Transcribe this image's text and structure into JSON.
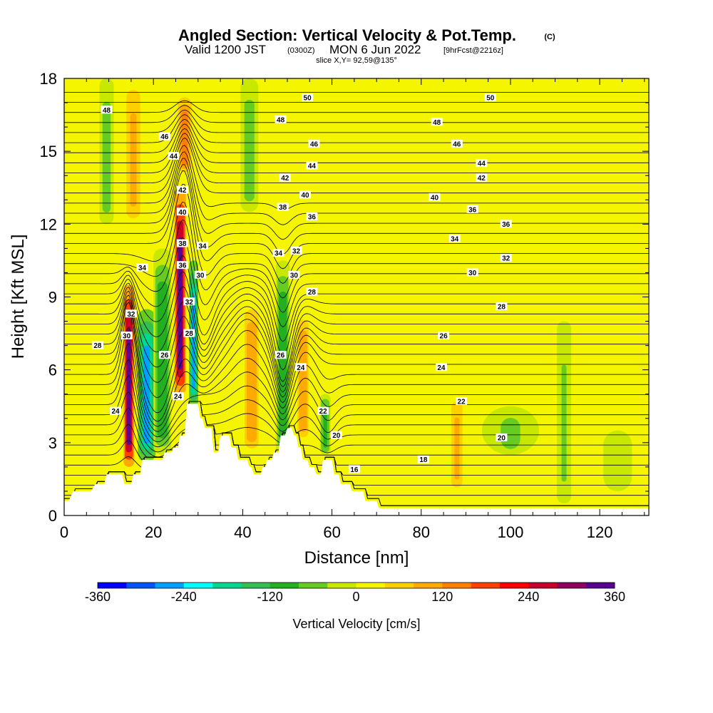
{
  "header": {
    "title": "Angled Section: Vertical Velocity & Pot.Temp.",
    "title_suffix": "(C)",
    "valid_prefix": "Valid 1200 JST",
    "valid_utc": "(0300Z)",
    "valid_date": "MON 6 Jun 2022",
    "valid_fcst": "[9hrFcst@2216z]",
    "slice": "slice X,Y= 92,59@135°"
  },
  "colorbar": {
    "label": "Vertical Velocity [cm/s]",
    "ticks": [
      "-360",
      "-240",
      "-120",
      "0",
      "120",
      "240",
      "360"
    ],
    "colors": [
      "#0000ff",
      "#0055ff",
      "#00a0ff",
      "#00ffff",
      "#00d890",
      "#33c050",
      "#22b020",
      "#66cc22",
      "#c8e800",
      "#f5f500",
      "#ffd000",
      "#ffaa00",
      "#ff8000",
      "#ff4000",
      "#ff0000",
      "#c8002a",
      "#900060",
      "#5a0090"
    ]
  },
  "chart_data": {
    "type": "heatmap",
    "xlabel": "Distance [nm]",
    "ylabel": "Height [Kft MSL]",
    "xlim": [
      0,
      131
    ],
    "ylim": [
      0,
      18
    ],
    "xticks": [
      "0",
      "20",
      "40",
      "60",
      "80",
      "100",
      "120"
    ],
    "yticks": [
      "0",
      "3",
      "6",
      "9",
      "12",
      "15",
      "18"
    ],
    "field": "Vertical Velocity [cm/s]",
    "field_range": [
      -360,
      360
    ],
    "contour_field": "Potential Temperature [C]",
    "velocity_features": [
      {
        "x": 14.5,
        "y_bottom": 2.0,
        "y_top": 9.5,
        "value": 320,
        "width": 1.5
      },
      {
        "x": 18.5,
        "y_bottom": 2.2,
        "y_top": 8.5,
        "value": -260,
        "width": 2.5
      },
      {
        "x": 22.0,
        "y_bottom": 2.5,
        "y_top": 11.0,
        "value": -110,
        "width": 2.5
      },
      {
        "x": 26.0,
        "y_bottom": 5.0,
        "y_top": 13.5,
        "value": 320,
        "width": 1.6
      },
      {
        "x": 27.0,
        "y_bottom": 14.0,
        "y_top": 17.5,
        "value": 120,
        "width": 2.5
      },
      {
        "x": 29.0,
        "y_bottom": 4.5,
        "y_top": 10.5,
        "value": -260,
        "width": 1.3
      },
      {
        "x": 15.5,
        "y_bottom": 12.0,
        "y_top": 18.0,
        "value": 90,
        "width": 2.5
      },
      {
        "x": 9.5,
        "y_bottom": 12.0,
        "y_top": 18.0,
        "value": -70,
        "width": 2.0
      },
      {
        "x": 42.0,
        "y_bottom": 2.5,
        "y_top": 9.0,
        "value": 110,
        "width": 2.5
      },
      {
        "x": 49.0,
        "y_bottom": 2.5,
        "y_top": 10.5,
        "value": -110,
        "width": 2.0
      },
      {
        "x": 53.5,
        "y_bottom": 3.0,
        "y_top": 8.5,
        "value": 110,
        "width": 2.0
      },
      {
        "x": 58.5,
        "y_bottom": 2.5,
        "y_top": 5.0,
        "value": -90,
        "width": 1.5
      },
      {
        "x": 41.5,
        "y_bottom": 12.5,
        "y_top": 18.0,
        "value": -70,
        "width": 2.5
      },
      {
        "x": 88.0,
        "y_bottom": 1.0,
        "y_top": 5.0,
        "value": 80,
        "width": 2.0
      },
      {
        "x": 100.0,
        "y_bottom": 2.5,
        "y_top": 4.5,
        "value": -50,
        "width": 8.0
      },
      {
        "x": 112.0,
        "y_bottom": 0.5,
        "y_top": 8.0,
        "value": -40,
        "width": 2.0
      },
      {
        "x": 124.0,
        "y_bottom": 1.0,
        "y_top": 3.5,
        "value": -30,
        "width": 4.0
      }
    ],
    "terrain": [
      [
        0,
        0.6
      ],
      [
        1,
        0.6
      ],
      [
        2,
        1.0
      ],
      [
        6,
        1.0
      ],
      [
        7,
        1.3
      ],
      [
        9,
        1.3
      ],
      [
        9.5,
        1.7
      ],
      [
        13,
        1.7
      ],
      [
        13.5,
        1.3
      ],
      [
        15,
        1.3
      ],
      [
        15.5,
        1.7
      ],
      [
        17,
        1.7
      ],
      [
        17.5,
        2.3
      ],
      [
        22,
        2.3
      ],
      [
        22.5,
        2.6
      ],
      [
        24,
        2.6
      ],
      [
        24.5,
        2.8
      ],
      [
        25.5,
        2.8
      ],
      [
        26,
        3.3
      ],
      [
        27,
        3.3
      ],
      [
        27.5,
        4.6
      ],
      [
        30,
        4.6
      ],
      [
        30.5,
        4.0
      ],
      [
        31,
        4.0
      ],
      [
        31.5,
        3.6
      ],
      [
        33,
        3.6
      ],
      [
        33.5,
        2.6
      ],
      [
        34.5,
        2.6
      ],
      [
        35,
        3.3
      ],
      [
        37,
        3.3
      ],
      [
        37.5,
        2.8
      ],
      [
        38.5,
        2.8
      ],
      [
        39,
        2.3
      ],
      [
        41,
        2.3
      ],
      [
        41.5,
        2.0
      ],
      [
        42,
        2.0
      ],
      [
        42.5,
        1.7
      ],
      [
        44,
        1.7
      ],
      [
        44.5,
        2.0
      ],
      [
        45,
        2.0
      ],
      [
        45.5,
        2.3
      ],
      [
        46.5,
        2.3
      ],
      [
        47,
        2.6
      ],
      [
        48,
        2.6
      ],
      [
        48.5,
        3.3
      ],
      [
        49.5,
        3.3
      ],
      [
        50,
        3.6
      ],
      [
        51,
        3.6
      ],
      [
        51.5,
        3.3
      ],
      [
        52,
        3.3
      ],
      [
        52.5,
        2.8
      ],
      [
        53,
        2.8
      ],
      [
        53.5,
        2.3
      ],
      [
        54.5,
        2.3
      ],
      [
        55,
        2.0
      ],
      [
        56,
        2.0
      ],
      [
        56.5,
        1.7
      ],
      [
        57.5,
        1.7
      ],
      [
        58,
        2.3
      ],
      [
        60,
        2.3
      ],
      [
        60.5,
        1.7
      ],
      [
        61.5,
        1.7
      ],
      [
        62,
        1.3
      ],
      [
        64,
        1.3
      ],
      [
        64.5,
        1.0
      ],
      [
        67,
        1.0
      ],
      [
        67.5,
        0.6
      ],
      [
        70,
        0.6
      ],
      [
        70.5,
        0.3
      ],
      [
        131,
        0.3
      ]
    ],
    "theta_bases": [
      10,
      11,
      12,
      13,
      14,
      15,
      16,
      17,
      18,
      19,
      20,
      21,
      22,
      23,
      24,
      25,
      26,
      27,
      28,
      29,
      30,
      31,
      32,
      33,
      34,
      35,
      36,
      37,
      38,
      39,
      40,
      41,
      42,
      43,
      44,
      45,
      46,
      47,
      48,
      49,
      50,
      51,
      52
    ],
    "theta_waves": [
      {
        "x": 14.5,
        "dx": 2.0,
        "dy": 3.0,
        "y_lo": 2.0,
        "y_hi": 10.0
      },
      {
        "x": 21.0,
        "dx": 4.5,
        "dy": -2.5,
        "y_lo": 2.0,
        "y_hi": 11.0
      },
      {
        "x": 27.0,
        "dx": 3.0,
        "dy": 3.5,
        "y_lo": 5.0,
        "y_hi": 17.0
      },
      {
        "x": 30.5,
        "dx": 3.5,
        "dy": -2.2,
        "y_lo": 5.0,
        "y_hi": 13.0
      },
      {
        "x": 41.0,
        "dx": 4.5,
        "dy": 1.5,
        "y_lo": 3.0,
        "y_hi": 10.0
      },
      {
        "x": 49.0,
        "dx": 2.5,
        "dy": -2.5,
        "y_lo": 3.0,
        "y_hi": 13.0
      },
      {
        "x": 54.0,
        "dx": 3.0,
        "dy": 1.0,
        "y_lo": 3.0,
        "y_hi": 9.0
      },
      {
        "x": 59.0,
        "dx": 2.5,
        "dy": -0.8,
        "y_lo": 2.5,
        "y_hi": 6.0
      }
    ],
    "contour_labels": [
      {
        "text": "48",
        "x": 9.5,
        "y": 16.7
      },
      {
        "text": "46",
        "x": 22.5,
        "y": 15.6
      },
      {
        "text": "44",
        "x": 24.5,
        "y": 14.8
      },
      {
        "text": "42",
        "x": 26.5,
        "y": 13.4
      },
      {
        "text": "40",
        "x": 26.5,
        "y": 12.5
      },
      {
        "text": "38",
        "x": 26.5,
        "y": 11.2
      },
      {
        "text": "36",
        "x": 26.5,
        "y": 10.3
      },
      {
        "text": "34",
        "x": 31.0,
        "y": 11.1
      },
      {
        "text": "30",
        "x": 30.5,
        "y": 9.9
      },
      {
        "text": "32",
        "x": 28.0,
        "y": 8.8
      },
      {
        "text": "28",
        "x": 28.0,
        "y": 7.5
      },
      {
        "text": "34",
        "x": 17.5,
        "y": 10.2
      },
      {
        "text": "32",
        "x": 15.0,
        "y": 8.3
      },
      {
        "text": "30",
        "x": 14.0,
        "y": 7.4
      },
      {
        "text": "28",
        "x": 7.5,
        "y": 7.0
      },
      {
        "text": "26",
        "x": 22.5,
        "y": 6.6
      },
      {
        "text": "24",
        "x": 25.5,
        "y": 4.9
      },
      {
        "text": "24",
        "x": 11.5,
        "y": 4.3
      },
      {
        "text": "50",
        "x": 54.5,
        "y": 17.2
      },
      {
        "text": "48",
        "x": 48.5,
        "y": 16.3
      },
      {
        "text": "46",
        "x": 56.0,
        "y": 15.3
      },
      {
        "text": "44",
        "x": 55.5,
        "y": 14.4
      },
      {
        "text": "42",
        "x": 49.5,
        "y": 13.9
      },
      {
        "text": "40",
        "x": 54.0,
        "y": 13.2
      },
      {
        "text": "38",
        "x": 49.0,
        "y": 12.7
      },
      {
        "text": "36",
        "x": 55.5,
        "y": 12.3
      },
      {
        "text": "34",
        "x": 48.0,
        "y": 10.8
      },
      {
        "text": "32",
        "x": 52.0,
        "y": 10.9
      },
      {
        "text": "30",
        "x": 51.5,
        "y": 9.9
      },
      {
        "text": "28",
        "x": 55.5,
        "y": 9.2
      },
      {
        "text": "26",
        "x": 48.5,
        "y": 6.6
      },
      {
        "text": "24",
        "x": 53.0,
        "y": 6.1
      },
      {
        "text": "22",
        "x": 58.0,
        "y": 4.3
      },
      {
        "text": "20",
        "x": 61.0,
        "y": 3.3
      },
      {
        "text": "16",
        "x": 65.0,
        "y": 1.9
      },
      {
        "text": "50",
        "x": 95.5,
        "y": 17.2
      },
      {
        "text": "48",
        "x": 83.5,
        "y": 16.2
      },
      {
        "text": "46",
        "x": 88.0,
        "y": 15.3
      },
      {
        "text": "44",
        "x": 93.5,
        "y": 14.5
      },
      {
        "text": "42",
        "x": 93.5,
        "y": 13.9
      },
      {
        "text": "40",
        "x": 83.0,
        "y": 13.1
      },
      {
        "text": "36",
        "x": 91.5,
        "y": 12.6
      },
      {
        "text": "36",
        "x": 99.0,
        "y": 12.0
      },
      {
        "text": "34",
        "x": 87.5,
        "y": 11.4
      },
      {
        "text": "32",
        "x": 99.0,
        "y": 10.6
      },
      {
        "text": "30",
        "x": 91.5,
        "y": 10.0
      },
      {
        "text": "28",
        "x": 98.0,
        "y": 8.6
      },
      {
        "text": "26",
        "x": 85.0,
        "y": 7.4
      },
      {
        "text": "24",
        "x": 84.5,
        "y": 6.1
      },
      {
        "text": "22",
        "x": 89.0,
        "y": 4.7
      },
      {
        "text": "20",
        "x": 98.0,
        "y": 3.2
      },
      {
        "text": "18",
        "x": 80.5,
        "y": 2.3
      }
    ]
  }
}
